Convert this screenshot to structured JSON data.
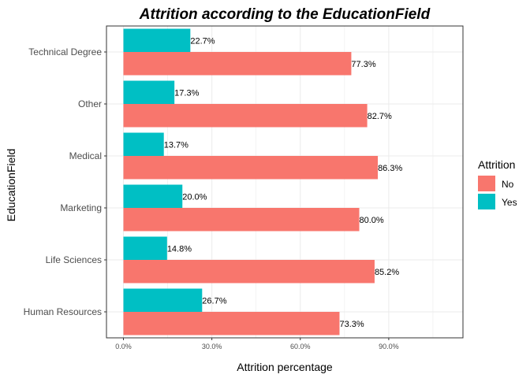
{
  "chart_data": {
    "type": "bar",
    "orientation": "horizontal",
    "title": "Attrition according to the EducationField",
    "xlabel": "Attrition percentage",
    "ylabel": "EducationField",
    "categories": [
      "Human Resources",
      "Life Sciences",
      "Marketing",
      "Medical",
      "Other",
      "Technical Degree"
    ],
    "series": [
      {
        "name": "No",
        "color": "#F8766D",
        "values": [
          73.3,
          85.2,
          80.0,
          86.3,
          82.7,
          77.3
        ],
        "labels": [
          "73.3%",
          "85.2%",
          "80.0%",
          "86.3%",
          "82.7%",
          "77.3%"
        ]
      },
      {
        "name": "Yes",
        "color": "#00BFC4",
        "values": [
          26.7,
          14.8,
          20.0,
          13.7,
          17.3,
          22.7
        ],
        "labels": [
          "26.7%",
          "14.8%",
          "20.0%",
          "13.7%",
          "17.3%",
          "22.7%"
        ]
      }
    ],
    "xlim": [
      0,
      100
    ],
    "xticks": [
      0,
      30,
      60,
      90
    ],
    "xtick_labels": [
      "0.0%",
      "30.0%",
      "60.0%",
      "90.0%"
    ],
    "grid": true,
    "legend": {
      "title": "Attrition",
      "position": "right"
    }
  }
}
